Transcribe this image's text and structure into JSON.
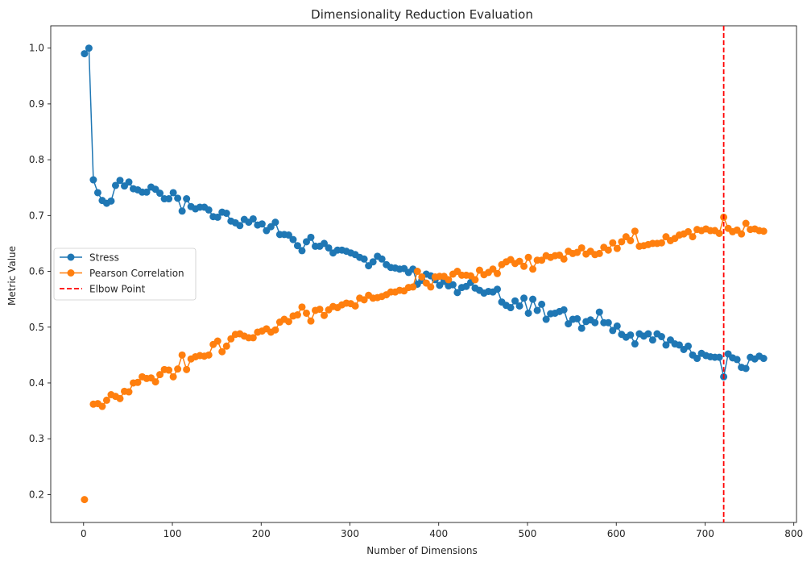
{
  "chart_data": {
    "type": "line",
    "title": "Dimensionality Reduction Evaluation",
    "xlabel": "Number of Dimensions",
    "ylabel": "Metric Value",
    "xlim": [
      -37,
      803
    ],
    "ylim": [
      0.15,
      1.04
    ],
    "x_ticks": [
      0,
      100,
      200,
      300,
      400,
      500,
      600,
      700,
      800
    ],
    "y_ticks": [
      0.2,
      0.3,
      0.4,
      0.5,
      0.6,
      0.7,
      0.8,
      0.9,
      1.0
    ],
    "x_tick_labels": [
      "0",
      "100",
      "200",
      "300",
      "400",
      "500",
      "600",
      "700",
      "800"
    ],
    "y_tick_labels": [
      "0.2",
      "0.3",
      "0.4",
      "0.5",
      "0.6",
      "0.7",
      "0.8",
      "0.9",
      "1.0"
    ],
    "grid": false,
    "legend_position": "center-left",
    "x": [
      1,
      6,
      11,
      16,
      21,
      26,
      31,
      36,
      41,
      46,
      51,
      56,
      61,
      66,
      71,
      76,
      81,
      86,
      91,
      96,
      101,
      106,
      111,
      116,
      121,
      126,
      131,
      136,
      141,
      146,
      151,
      156,
      161,
      166,
      171,
      176,
      181,
      186,
      191,
      196,
      201,
      206,
      211,
      216,
      221,
      226,
      231,
      236,
      241,
      246,
      251,
      256,
      261,
      266,
      271,
      276,
      281,
      286,
      291,
      296,
      301,
      306,
      311,
      316,
      321,
      326,
      331,
      336,
      341,
      346,
      351,
      356,
      361,
      366,
      371,
      376,
      381,
      386,
      391,
      396,
      401,
      406,
      411,
      416,
      421,
      426,
      431,
      436,
      441,
      446,
      451,
      456,
      461,
      466,
      471,
      476,
      481,
      486,
      491,
      496,
      501,
      506,
      511,
      516,
      521,
      526,
      531,
      536,
      541,
      546,
      551,
      556,
      561,
      566,
      571,
      576,
      581,
      586,
      591,
      596,
      601,
      606,
      611,
      616,
      621,
      626,
      631,
      636,
      641,
      646,
      651,
      656,
      661,
      666,
      671,
      676,
      681,
      686,
      691,
      696,
      701,
      706,
      711,
      716,
      721,
      726,
      731,
      736,
      741,
      746,
      751,
      756,
      761,
      766
    ],
    "series": [
      {
        "name": "Stress",
        "color": "#1f77b4",
        "values": [
          0.99,
          1.0,
          0.764,
          0.741,
          0.727,
          0.722,
          0.726,
          0.754,
          0.763,
          0.753,
          0.76,
          0.748,
          0.746,
          0.742,
          0.742,
          0.751,
          0.747,
          0.74,
          0.73,
          0.73,
          0.741,
          0.731,
          0.708,
          0.73,
          0.716,
          0.712,
          0.715,
          0.715,
          0.71,
          0.698,
          0.697,
          0.706,
          0.704,
          0.69,
          0.687,
          0.682,
          0.693,
          0.688,
          0.694,
          0.683,
          0.685,
          0.673,
          0.68,
          0.688,
          0.666,
          0.666,
          0.665,
          0.657,
          0.646,
          0.637,
          0.653,
          0.661,
          0.645,
          0.645,
          0.65,
          0.642,
          0.633,
          0.638,
          0.638,
          0.636,
          0.633,
          0.63,
          0.625,
          0.622,
          0.61,
          0.617,
          0.627,
          0.622,
          0.612,
          0.607,
          0.606,
          0.604,
          0.605,
          0.598,
          0.604,
          0.577,
          0.584,
          0.595,
          0.592,
          0.585,
          0.575,
          0.582,
          0.574,
          0.576,
          0.562,
          0.571,
          0.573,
          0.58,
          0.57,
          0.566,
          0.561,
          0.564,
          0.563,
          0.568,
          0.545,
          0.539,
          0.535,
          0.547,
          0.538,
          0.552,
          0.525,
          0.55,
          0.53,
          0.541,
          0.514,
          0.524,
          0.525,
          0.528,
          0.531,
          0.506,
          0.514,
          0.515,
          0.498,
          0.51,
          0.513,
          0.508,
          0.527,
          0.508,
          0.508,
          0.494,
          0.502,
          0.487,
          0.482,
          0.486,
          0.47,
          0.488,
          0.484,
          0.488,
          0.477,
          0.488,
          0.483,
          0.468,
          0.477,
          0.47,
          0.468,
          0.46,
          0.466,
          0.45,
          0.444,
          0.453,
          0.449,
          0.447,
          0.446,
          0.446,
          0.411,
          0.452,
          0.445,
          0.442,
          0.428,
          0.426,
          0.446,
          0.443,
          0.448,
          0.444
        ]
      },
      {
        "name": "Pearson Correlation",
        "color": "#ff7f0e",
        "values": [
          0.191,
          null,
          0.362,
          0.363,
          0.358,
          0.369,
          0.379,
          0.376,
          0.372,
          0.385,
          0.384,
          0.4,
          0.401,
          0.411,
          0.408,
          0.409,
          0.402,
          0.415,
          0.424,
          0.423,
          0.411,
          0.425,
          0.45,
          0.424,
          0.443,
          0.447,
          0.449,
          0.448,
          0.45,
          0.469,
          0.475,
          0.456,
          0.466,
          0.479,
          0.487,
          0.488,
          0.484,
          0.481,
          0.481,
          0.491,
          0.493,
          0.497,
          0.491,
          0.495,
          0.509,
          0.514,
          0.51,
          0.52,
          0.522,
          0.536,
          0.525,
          0.511,
          0.53,
          0.532,
          0.521,
          0.531,
          0.537,
          0.535,
          0.54,
          0.543,
          0.542,
          0.538,
          0.552,
          0.549,
          0.557,
          0.552,
          0.553,
          0.555,
          0.558,
          0.563,
          0.563,
          0.566,
          0.565,
          0.571,
          0.572,
          0.6,
          0.59,
          0.579,
          0.572,
          0.59,
          0.591,
          0.591,
          0.585,
          0.595,
          0.6,
          0.593,
          0.593,
          0.592,
          0.585,
          0.602,
          0.594,
          0.598,
          0.604,
          0.596,
          0.612,
          0.617,
          0.621,
          0.614,
          0.618,
          0.609,
          0.625,
          0.604,
          0.62,
          0.62,
          0.628,
          0.625,
          0.628,
          0.629,
          0.622,
          0.636,
          0.632,
          0.634,
          0.642,
          0.631,
          0.636,
          0.63,
          0.632,
          0.643,
          0.638,
          0.651,
          0.641,
          0.653,
          0.662,
          0.655,
          0.672,
          0.645,
          0.646,
          0.648,
          0.65,
          0.65,
          0.651,
          0.662,
          0.655,
          0.659,
          0.665,
          0.667,
          0.671,
          0.662,
          0.675,
          0.673,
          0.676,
          0.673,
          0.673,
          0.668,
          0.697,
          0.677,
          0.671,
          0.674,
          0.667,
          0.686,
          0.675,
          0.676,
          0.673,
          0.672
        ]
      }
    ],
    "elbow": {
      "name": "Elbow Point",
      "x": 721,
      "color": "#ff0000"
    }
  }
}
